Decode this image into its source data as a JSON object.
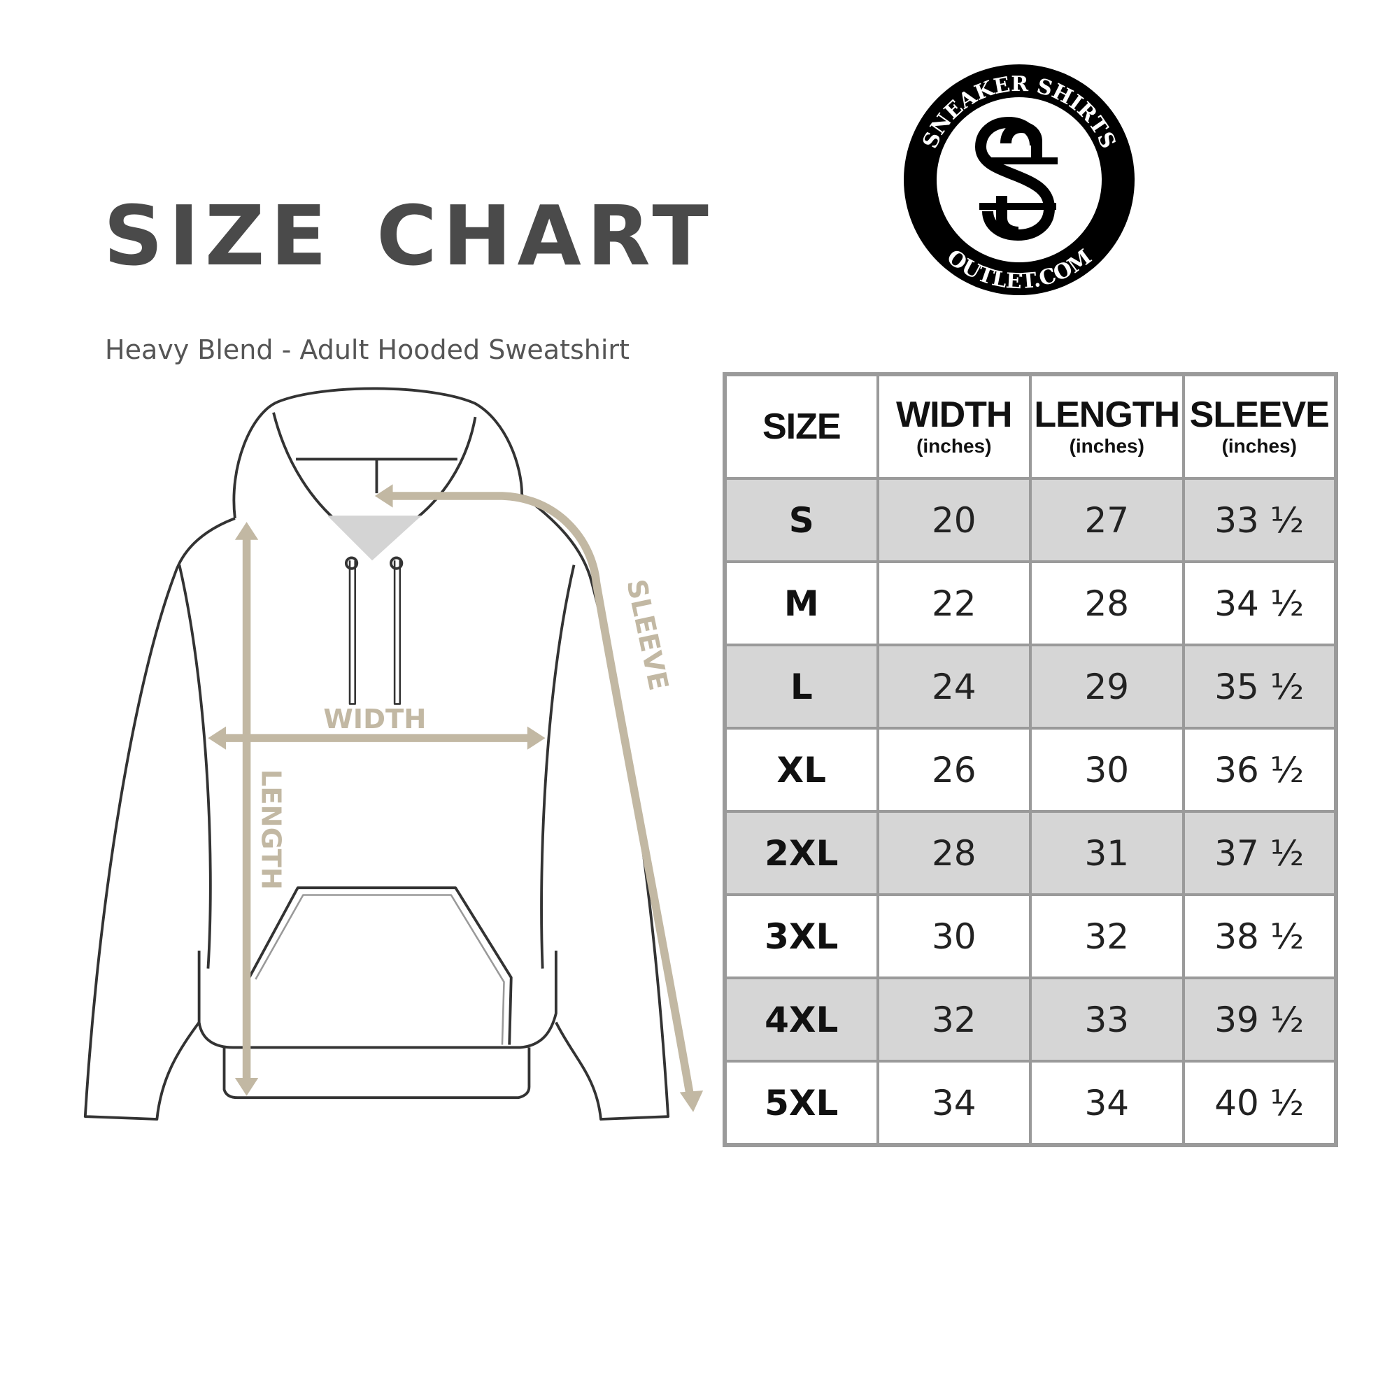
{
  "header": {
    "title": "SIZE CHART",
    "subtitle": "Heavy Blend - Adult Hooded Sweatshirt"
  },
  "logo": {
    "text_top": "SNEAKER SHIRTS",
    "text_bottom": "OUTLET.COM",
    "monogram": "SS"
  },
  "diagram": {
    "labels": {
      "width": "WIDTH",
      "length": "LENGTH",
      "sleeve": "SLEEVE"
    },
    "measure_color": "#c2b8a3",
    "outline_color": "#333333"
  },
  "table": {
    "columns": [
      {
        "label": "SIZE",
        "unit": ""
      },
      {
        "label": "WIDTH",
        "unit": "(inches)"
      },
      {
        "label": "LENGTH",
        "unit": "(inches)"
      },
      {
        "label": "SLEEVE",
        "unit": "(inches)"
      }
    ],
    "rows": [
      [
        "S",
        "20",
        "27",
        "33 ½"
      ],
      [
        "M",
        "22",
        "28",
        "34 ½"
      ],
      [
        "L",
        "24",
        "29",
        "35 ½"
      ],
      [
        "XL",
        "26",
        "30",
        "36 ½"
      ],
      [
        "2XL",
        "28",
        "31",
        "37 ½"
      ],
      [
        "3XL",
        "30",
        "32",
        "38 ½"
      ],
      [
        "4XL",
        "32",
        "33",
        "39 ½"
      ],
      [
        "5XL",
        "34",
        "34",
        "40 ½"
      ]
    ],
    "shade_color": "#d6d6d6",
    "border_color": "#9a9a9a"
  }
}
